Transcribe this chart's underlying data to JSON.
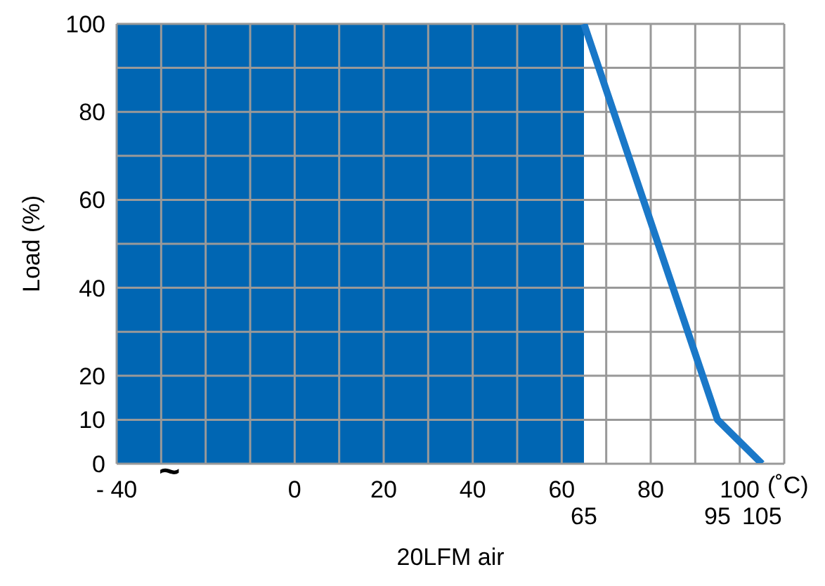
{
  "chart_data": {
    "type": "line",
    "xlabel": "20LFM air",
    "ylabel": "Load (%)",
    "xlim": [
      -40,
      110
    ],
    "ylim": [
      0,
      100
    ],
    "xticks": [
      {
        "value": -40,
        "label": "- 40"
      },
      {
        "value": -30,
        "label": null
      },
      {
        "value": -20,
        "label": null
      },
      {
        "value": -10,
        "label": null
      },
      0,
      {
        "value": 10,
        "label": null
      },
      20,
      {
        "value": 30,
        "label": null
      },
      40,
      {
        "value": 50,
        "label": null
      },
      60,
      {
        "value": 70,
        "label": null
      },
      80,
      {
        "value": 90,
        "label": null
      },
      100,
      {
        "value": 110,
        "label": null
      }
    ],
    "yticks": [
      0,
      10,
      20,
      {
        "value": 30,
        "label": null
      },
      40,
      {
        "value": 50,
        "label": null
      },
      60,
      {
        "value": 70,
        "label": null
      },
      80,
      {
        "value": 90,
        "label": null
      },
      100
    ],
    "grid": true,
    "bands": [
      {
        "axis": "x",
        "from": -40,
        "to": 65,
        "color": "#0066b3"
      }
    ],
    "series": [
      {
        "color": "#1a78c8",
        "x": [
          65,
          95,
          105
        ],
        "values": [
          100,
          10,
          0
        ]
      }
    ],
    "annotations": [
      "(˚C)",
      "~",
      "65",
      "95",
      "105"
    ]
  }
}
